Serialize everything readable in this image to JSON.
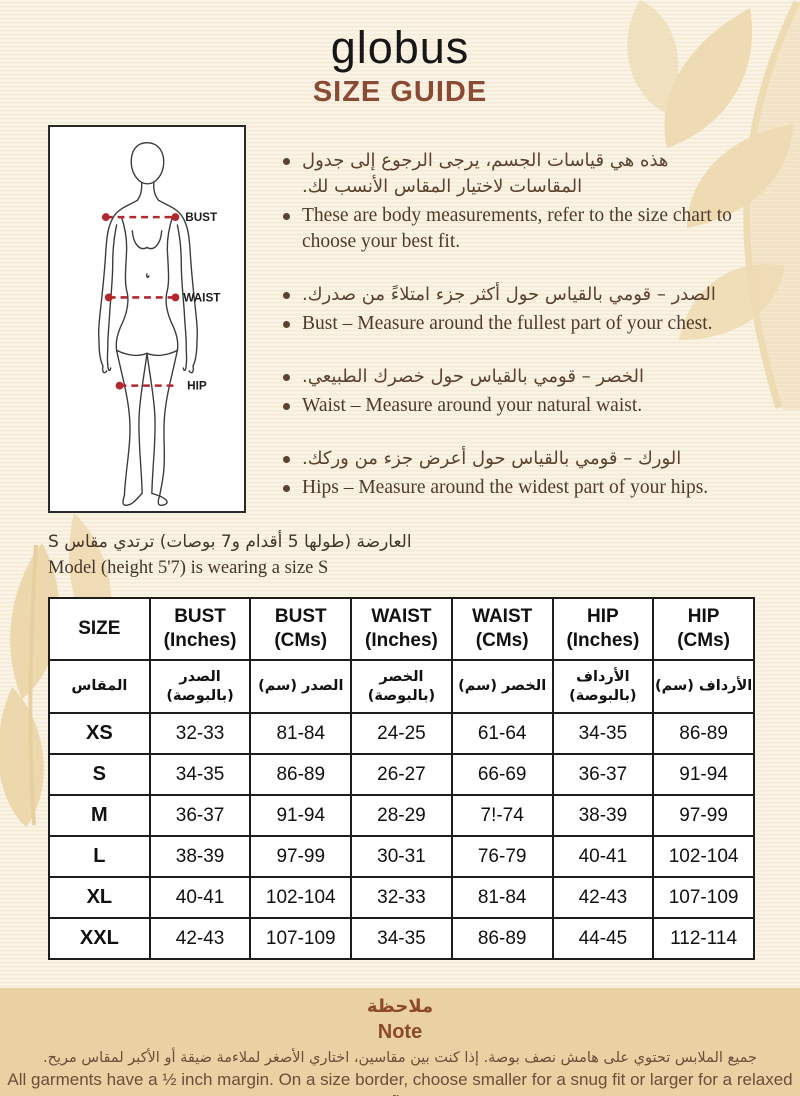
{
  "brand": {
    "logo": "globus",
    "title": "SIZE GUIDE"
  },
  "colors": {
    "page_background": "#f8efde",
    "leaf_decoration": "#eedbb4",
    "title_brown": "#8a4a33",
    "text_brown": "#5c4130",
    "note_band_background": "#e9d1a4",
    "note_heading_brown": "#8d4a28",
    "measurement_line_red": "#b3282d",
    "table_border": "#1d1d1d"
  },
  "diagram": {
    "labels": {
      "bust": "BUST",
      "waist": "WAIST",
      "hip": "HIP"
    }
  },
  "bullets": [
    {
      "ar": "هذه هي قياسات الجسم، يرجى الرجوع إلى جدول المقاسات لاختيار المقاس الأنسب لك.",
      "en": "These are body measurements, refer to the size chart to choose your best fit."
    },
    {
      "ar": "الصدر – قومي بالقياس حول أكثر جزء امتلاءً من صدرك.",
      "en": "Bust – Measure around the fullest part of your chest."
    },
    {
      "ar": "الخصر – قومي بالقياس حول خصرك الطبيعي.",
      "en": "Waist – Measure around your natural waist."
    },
    {
      "ar": "الورك – قومي بالقياس حول أعرض جزء من وركك.",
      "en": "Hips – Measure around the widest part of your hips."
    }
  ],
  "model_info": {
    "ar": "العارضة (طولها 5 أقدام و7 بوصات) ترتدي مقاس S",
    "en": "Model (height 5'7) is wearing a size S"
  },
  "size_table": {
    "headers_en": [
      [
        "SIZE"
      ],
      [
        "BUST",
        "(Inches)"
      ],
      [
        "BUST",
        "(CMs)"
      ],
      [
        "WAIST",
        "(Inches)"
      ],
      [
        "WAIST",
        "(CMs)"
      ],
      [
        "HIP",
        "(Inches)"
      ],
      [
        "HIP",
        "(CMs)"
      ]
    ],
    "headers_ar": [
      [
        "المقاس"
      ],
      [
        "الصدر",
        "(بالبوصة)"
      ],
      [
        "الصدر (سم)"
      ],
      [
        "الخصر",
        "(بالبوصة)"
      ],
      [
        "الخصر (سم)"
      ],
      [
        "الأرداف",
        "(بالبوصة)"
      ],
      [
        "الأرداف (سم)"
      ]
    ],
    "rows": [
      [
        "XS",
        "32-33",
        "81-84",
        "24-25",
        "61-64",
        "34-35",
        "86-89"
      ],
      [
        "S",
        "34-35",
        "86-89",
        "26-27",
        "66-69",
        "36-37",
        "91-94"
      ],
      [
        "M",
        "36-37",
        "91-94",
        "28-29",
        "7!-74",
        "38-39",
        "97-99"
      ],
      [
        "L",
        "38-39",
        "97-99",
        "30-31",
        "76-79",
        "40-41",
        "102-104"
      ],
      [
        "XL",
        "40-41",
        "102-104",
        "32-33",
        "81-84",
        "42-43",
        "107-109"
      ],
      [
        "XXL",
        "42-43",
        "107-109",
        "34-35",
        "86-89",
        "44-45",
        "112-114"
      ]
    ]
  },
  "note": {
    "title_ar": "ملاحظة",
    "title_en": "Note",
    "body_ar": "جميع الملابس تحتوي على هامش نصف بوصة. إذا كنت بين مقاسين، اختاري الأصغر لملاءمة ضيقة أو الأكبر لمقاس مريح.",
    "body_en": "All garments have a ½ inch margin. On a size border, choose smaller for a snug fit or larger for a relaxed fit."
  }
}
